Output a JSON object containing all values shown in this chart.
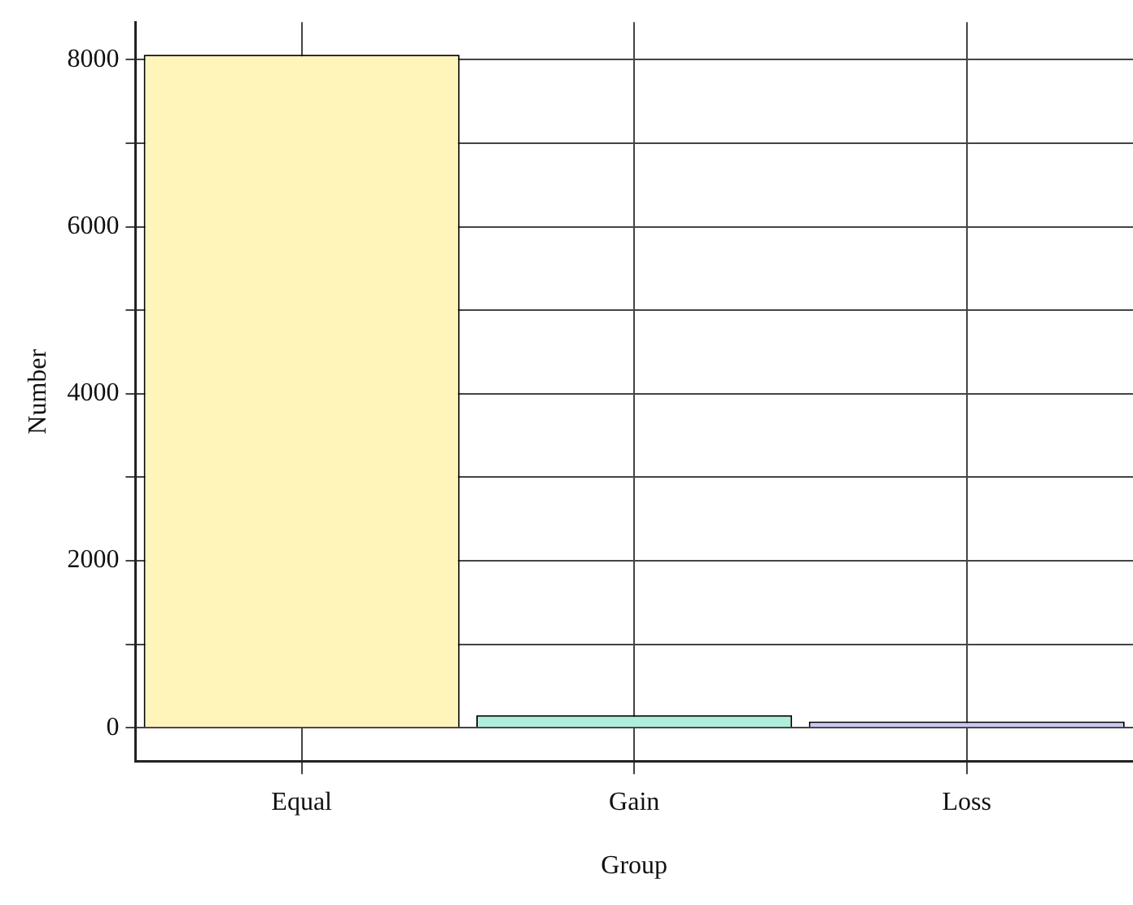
{
  "chart_data": {
    "type": "bar",
    "xlabel": "Group",
    "ylabel": "Number",
    "categories": [
      "Equal",
      "Gain",
      "Loss"
    ],
    "values": [
      8060,
      150,
      75
    ],
    "colors": [
      "#fff5bb",
      "#aeeedc",
      "#c8c8f0"
    ],
    "ylim": [
      -400,
      8450
    ],
    "yticks": [
      0,
      {
        "value": 1000,
        "label": null
      },
      2000,
      {
        "value": 3000,
        "label": null
      },
      4000,
      {
        "value": 5000,
        "label": null
      },
      6000,
      {
        "value": 7000,
        "label": null
      },
      8000
    ],
    "grid": true
  }
}
